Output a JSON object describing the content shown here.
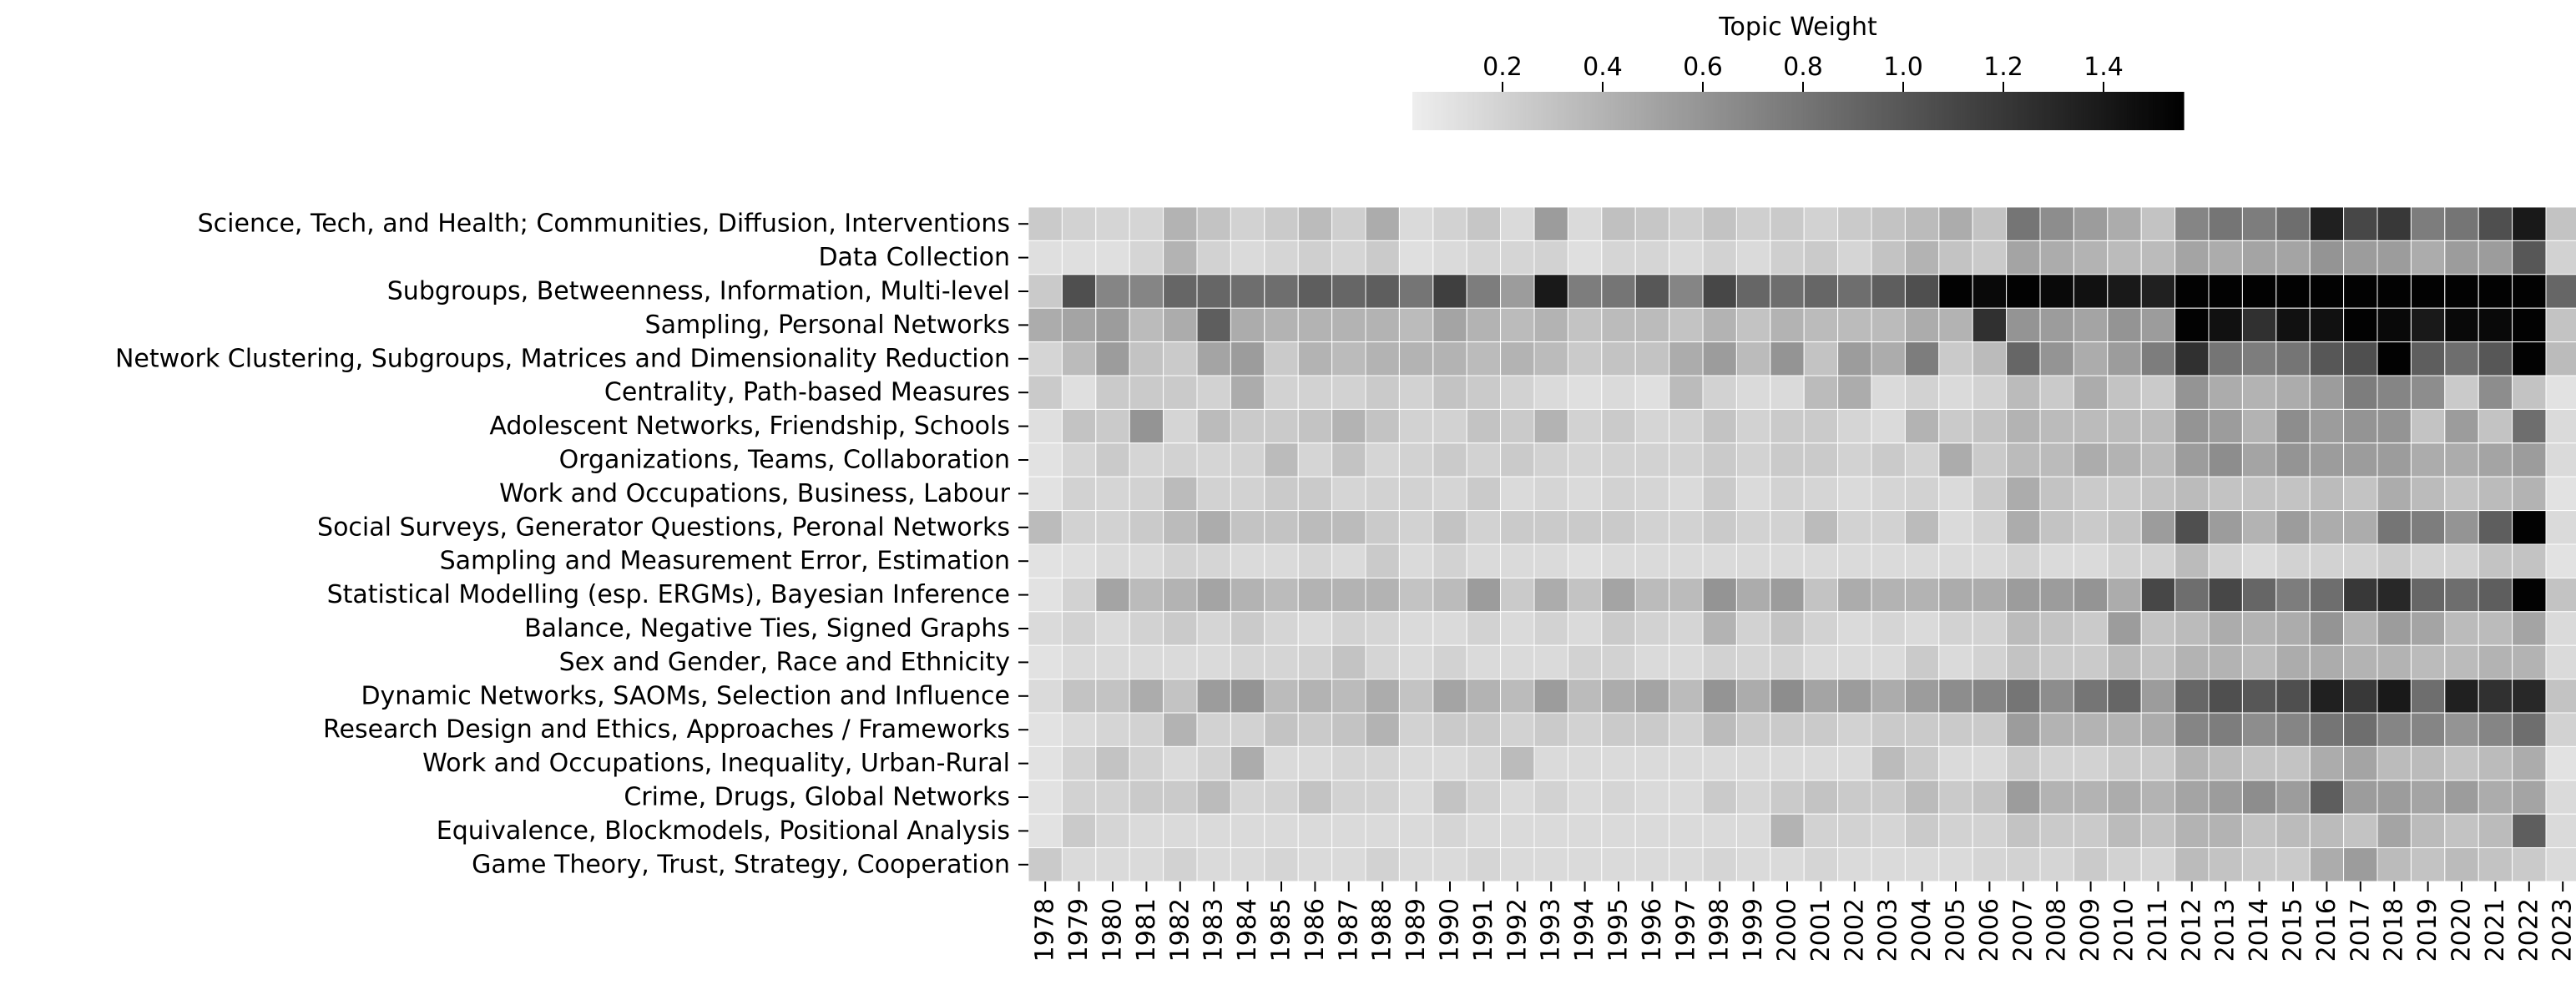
{
  "chart_data": {
    "type": "heatmap",
    "title": "",
    "xlabel": "",
    "ylabel": "",
    "colorbar": {
      "label": "Topic Weight",
      "ticks": [
        0.2,
        0.4,
        0.6,
        0.8,
        1.0,
        1.2,
        1.4
      ],
      "tick_labels": [
        "0.2",
        "0.4",
        "0.6",
        "0.8",
        "1.0",
        "1.2",
        "1.4"
      ],
      "range": [
        0.02,
        1.56
      ],
      "placement": "top-center",
      "colormap": "greys"
    },
    "x": [
      "1978",
      "1979",
      "1980",
      "1981",
      "1982",
      "1983",
      "1984",
      "1985",
      "1986",
      "1987",
      "1988",
      "1989",
      "1990",
      "1991",
      "1992",
      "1993",
      "1994",
      "1995",
      "1996",
      "1997",
      "1998",
      "1999",
      "2000",
      "2001",
      "2002",
      "2003",
      "2004",
      "2005",
      "2006",
      "2007",
      "2008",
      "2009",
      "2010",
      "2011",
      "2012",
      "2013",
      "2014",
      "2015",
      "2016",
      "2017",
      "2018",
      "2019",
      "2020",
      "2021",
      "2022",
      "2023"
    ],
    "y": [
      "Science, Tech, and Health; Communities, Diffusion, Interventions",
      "Data Collection",
      "Subgroups, Betweenness, Information, Multi-level",
      "Sampling, Personal Networks",
      "Network Clustering, Subgroups, Matrices and Dimensionality Reduction",
      "Centrality, Path-based Measures",
      "Adolescent Networks, Friendship, Schools",
      "Organizations, Teams, Collaboration",
      "Work and Occupations, Business, Labour",
      "Social Surveys, Generator Questions, Peronal Networks",
      "Sampling and Measurement Error, Estimation",
      "Statistical Modelling (esp. ERGMs), Bayesian Inference",
      "Balance, Negative Ties, Signed Graphs",
      "Sex and Gender, Race and Ethnicity",
      "Dynamic Networks, SAOMs, Selection and Influence",
      "Research Design and Ethics, Approaches / Frameworks",
      "Work and Occupations, Inequality, Urban-Rural",
      "Crime, Drugs, Global Networks",
      "Equivalence, Blockmodels, Positional Analysis",
      "Game Theory, Trust, Strategy, Cooperation"
    ],
    "values": [
      [
        0.25,
        0.2,
        0.18,
        0.18,
        0.4,
        0.3,
        0.2,
        0.25,
        0.35,
        0.22,
        0.45,
        0.15,
        0.2,
        0.28,
        0.15,
        0.55,
        0.15,
        0.32,
        0.28,
        0.22,
        0.3,
        0.22,
        0.25,
        0.2,
        0.25,
        0.3,
        0.35,
        0.45,
        0.3,
        0.8,
        0.65,
        0.55,
        0.45,
        0.3,
        0.7,
        0.8,
        0.75,
        0.85,
        1.35,
        1.1,
        1.2,
        0.75,
        0.8,
        1.05,
        1.4,
        0.3
      ],
      [
        0.12,
        0.12,
        0.12,
        0.18,
        0.4,
        0.2,
        0.15,
        0.18,
        0.22,
        0.18,
        0.25,
        0.12,
        0.15,
        0.18,
        0.18,
        0.2,
        0.12,
        0.18,
        0.18,
        0.15,
        0.2,
        0.15,
        0.22,
        0.25,
        0.18,
        0.3,
        0.4,
        0.3,
        0.25,
        0.5,
        0.45,
        0.4,
        0.35,
        0.35,
        0.5,
        0.45,
        0.5,
        0.5,
        0.6,
        0.55,
        0.55,
        0.45,
        0.55,
        0.55,
        1.0,
        0.2
      ],
      [
        0.25,
        1.05,
        0.7,
        0.7,
        0.9,
        0.9,
        0.85,
        0.85,
        0.95,
        0.9,
        0.95,
        0.8,
        1.15,
        0.75,
        0.55,
        1.4,
        0.75,
        0.8,
        1.0,
        0.7,
        1.1,
        0.9,
        0.85,
        0.9,
        0.85,
        0.95,
        1.05,
        1.55,
        1.5,
        1.55,
        1.5,
        1.45,
        1.4,
        1.35,
        1.55,
        1.55,
        1.55,
        1.55,
        1.55,
        1.55,
        1.55,
        1.55,
        1.55,
        1.55,
        1.55,
        0.9
      ],
      [
        0.45,
        0.5,
        0.55,
        0.35,
        0.45,
        0.95,
        0.45,
        0.4,
        0.4,
        0.4,
        0.4,
        0.35,
        0.5,
        0.4,
        0.35,
        0.4,
        0.3,
        0.35,
        0.35,
        0.3,
        0.4,
        0.3,
        0.4,
        0.35,
        0.35,
        0.35,
        0.45,
        0.4,
        1.25,
        0.6,
        0.55,
        0.5,
        0.6,
        0.55,
        1.55,
        1.45,
        1.25,
        1.45,
        1.45,
        1.55,
        1.5,
        1.4,
        1.5,
        1.5,
        1.55,
        0.3
      ],
      [
        0.18,
        0.35,
        0.55,
        0.3,
        0.25,
        0.5,
        0.55,
        0.25,
        0.4,
        0.35,
        0.4,
        0.4,
        0.4,
        0.35,
        0.4,
        0.35,
        0.25,
        0.3,
        0.3,
        0.45,
        0.55,
        0.35,
        0.6,
        0.3,
        0.55,
        0.45,
        0.75,
        0.25,
        0.35,
        0.9,
        0.6,
        0.45,
        0.55,
        0.75,
        1.25,
        0.8,
        0.75,
        0.8,
        1.0,
        1.05,
        1.55,
        0.95,
        0.85,
        1.0,
        1.55,
        0.35
      ],
      [
        0.25,
        0.12,
        0.25,
        0.25,
        0.25,
        0.2,
        0.45,
        0.2,
        0.2,
        0.2,
        0.25,
        0.2,
        0.3,
        0.25,
        0.2,
        0.15,
        0.12,
        0.15,
        0.12,
        0.35,
        0.2,
        0.15,
        0.15,
        0.35,
        0.45,
        0.15,
        0.2,
        0.15,
        0.2,
        0.35,
        0.25,
        0.45,
        0.3,
        0.25,
        0.6,
        0.45,
        0.4,
        0.45,
        0.55,
        0.75,
        0.7,
        0.65,
        0.25,
        0.65,
        0.3,
        0.1
      ],
      [
        0.12,
        0.3,
        0.25,
        0.6,
        0.18,
        0.35,
        0.25,
        0.25,
        0.3,
        0.4,
        0.3,
        0.2,
        0.2,
        0.3,
        0.25,
        0.4,
        0.2,
        0.25,
        0.18,
        0.2,
        0.3,
        0.2,
        0.25,
        0.25,
        0.18,
        0.15,
        0.4,
        0.25,
        0.3,
        0.4,
        0.35,
        0.35,
        0.35,
        0.35,
        0.6,
        0.55,
        0.4,
        0.65,
        0.55,
        0.6,
        0.6,
        0.3,
        0.55,
        0.3,
        0.85,
        0.15
      ],
      [
        0.1,
        0.18,
        0.25,
        0.18,
        0.2,
        0.18,
        0.2,
        0.35,
        0.18,
        0.3,
        0.18,
        0.2,
        0.25,
        0.2,
        0.25,
        0.2,
        0.18,
        0.2,
        0.2,
        0.2,
        0.25,
        0.2,
        0.25,
        0.25,
        0.2,
        0.25,
        0.2,
        0.45,
        0.25,
        0.35,
        0.35,
        0.45,
        0.4,
        0.35,
        0.55,
        0.65,
        0.5,
        0.6,
        0.55,
        0.55,
        0.55,
        0.45,
        0.45,
        0.5,
        0.55,
        0.15
      ],
      [
        0.1,
        0.2,
        0.18,
        0.2,
        0.35,
        0.2,
        0.2,
        0.25,
        0.25,
        0.18,
        0.2,
        0.2,
        0.18,
        0.25,
        0.15,
        0.18,
        0.15,
        0.2,
        0.18,
        0.15,
        0.25,
        0.15,
        0.2,
        0.18,
        0.15,
        0.18,
        0.2,
        0.15,
        0.25,
        0.45,
        0.3,
        0.25,
        0.25,
        0.3,
        0.35,
        0.3,
        0.3,
        0.3,
        0.35,
        0.3,
        0.45,
        0.35,
        0.3,
        0.35,
        0.4,
        0.1
      ],
      [
        0.35,
        0.2,
        0.2,
        0.25,
        0.35,
        0.45,
        0.3,
        0.3,
        0.35,
        0.35,
        0.25,
        0.2,
        0.3,
        0.2,
        0.25,
        0.25,
        0.25,
        0.25,
        0.2,
        0.2,
        0.25,
        0.2,
        0.2,
        0.35,
        0.2,
        0.2,
        0.35,
        0.15,
        0.2,
        0.45,
        0.3,
        0.25,
        0.3,
        0.55,
        1.05,
        0.55,
        0.4,
        0.55,
        0.45,
        0.45,
        0.8,
        0.75,
        0.6,
        0.95,
        1.55,
        0.15
      ],
      [
        0.1,
        0.12,
        0.15,
        0.15,
        0.2,
        0.18,
        0.15,
        0.15,
        0.18,
        0.15,
        0.25,
        0.15,
        0.2,
        0.15,
        0.15,
        0.15,
        0.12,
        0.15,
        0.15,
        0.15,
        0.15,
        0.15,
        0.15,
        0.15,
        0.15,
        0.15,
        0.15,
        0.15,
        0.15,
        0.2,
        0.15,
        0.15,
        0.2,
        0.2,
        0.35,
        0.2,
        0.15,
        0.2,
        0.2,
        0.2,
        0.25,
        0.2,
        0.2,
        0.3,
        0.3,
        0.1
      ],
      [
        0.1,
        0.2,
        0.5,
        0.35,
        0.4,
        0.5,
        0.4,
        0.35,
        0.4,
        0.4,
        0.4,
        0.3,
        0.35,
        0.55,
        0.25,
        0.45,
        0.3,
        0.5,
        0.35,
        0.35,
        0.6,
        0.45,
        0.55,
        0.3,
        0.45,
        0.4,
        0.4,
        0.45,
        0.45,
        0.55,
        0.55,
        0.6,
        0.45,
        1.1,
        0.85,
        1.1,
        0.9,
        0.75,
        0.85,
        1.2,
        1.3,
        0.9,
        0.85,
        0.95,
        1.55,
        0.3
      ],
      [
        0.15,
        0.2,
        0.15,
        0.2,
        0.25,
        0.18,
        0.25,
        0.18,
        0.15,
        0.2,
        0.18,
        0.15,
        0.15,
        0.2,
        0.15,
        0.2,
        0.15,
        0.25,
        0.2,
        0.18,
        0.4,
        0.2,
        0.3,
        0.2,
        0.15,
        0.18,
        0.15,
        0.2,
        0.2,
        0.35,
        0.3,
        0.25,
        0.55,
        0.3,
        0.35,
        0.45,
        0.4,
        0.45,
        0.6,
        0.4,
        0.55,
        0.5,
        0.35,
        0.35,
        0.5,
        0.15
      ],
      [
        0.1,
        0.15,
        0.15,
        0.15,
        0.15,
        0.15,
        0.18,
        0.18,
        0.2,
        0.3,
        0.18,
        0.15,
        0.2,
        0.15,
        0.15,
        0.15,
        0.2,
        0.2,
        0.15,
        0.15,
        0.2,
        0.18,
        0.2,
        0.15,
        0.15,
        0.15,
        0.25,
        0.15,
        0.2,
        0.3,
        0.25,
        0.25,
        0.35,
        0.3,
        0.4,
        0.4,
        0.35,
        0.45,
        0.45,
        0.4,
        0.4,
        0.35,
        0.35,
        0.4,
        0.4,
        0.15
      ],
      [
        0.15,
        0.3,
        0.3,
        0.45,
        0.3,
        0.55,
        0.6,
        0.35,
        0.4,
        0.35,
        0.45,
        0.3,
        0.5,
        0.4,
        0.35,
        0.55,
        0.35,
        0.45,
        0.5,
        0.35,
        0.6,
        0.45,
        0.65,
        0.5,
        0.55,
        0.45,
        0.55,
        0.65,
        0.7,
        0.8,
        0.65,
        0.8,
        0.9,
        0.55,
        0.9,
        1.05,
        1.0,
        1.05,
        1.35,
        1.2,
        1.4,
        0.85,
        1.35,
        1.25,
        1.3,
        0.3
      ],
      [
        0.1,
        0.15,
        0.18,
        0.2,
        0.4,
        0.2,
        0.2,
        0.3,
        0.25,
        0.3,
        0.4,
        0.2,
        0.25,
        0.25,
        0.2,
        0.25,
        0.2,
        0.25,
        0.25,
        0.2,
        0.35,
        0.25,
        0.25,
        0.25,
        0.2,
        0.25,
        0.25,
        0.25,
        0.25,
        0.55,
        0.4,
        0.4,
        0.4,
        0.45,
        0.7,
        0.75,
        0.65,
        0.7,
        0.8,
        0.85,
        0.7,
        0.7,
        0.6,
        0.7,
        0.85,
        0.2
      ],
      [
        0.1,
        0.2,
        0.3,
        0.2,
        0.15,
        0.2,
        0.45,
        0.15,
        0.15,
        0.18,
        0.18,
        0.15,
        0.15,
        0.18,
        0.35,
        0.15,
        0.15,
        0.15,
        0.15,
        0.15,
        0.15,
        0.15,
        0.15,
        0.15,
        0.15,
        0.35,
        0.25,
        0.15,
        0.15,
        0.25,
        0.2,
        0.2,
        0.25,
        0.25,
        0.4,
        0.35,
        0.3,
        0.3,
        0.45,
        0.5,
        0.35,
        0.35,
        0.3,
        0.35,
        0.45,
        0.1
      ],
      [
        0.1,
        0.2,
        0.2,
        0.25,
        0.25,
        0.35,
        0.18,
        0.2,
        0.3,
        0.2,
        0.2,
        0.15,
        0.3,
        0.2,
        0.15,
        0.2,
        0.15,
        0.18,
        0.15,
        0.15,
        0.25,
        0.18,
        0.25,
        0.3,
        0.25,
        0.25,
        0.35,
        0.25,
        0.3,
        0.55,
        0.4,
        0.4,
        0.45,
        0.4,
        0.5,
        0.55,
        0.65,
        0.55,
        0.95,
        0.55,
        0.55,
        0.5,
        0.55,
        0.45,
        0.5,
        0.15
      ],
      [
        0.1,
        0.25,
        0.18,
        0.15,
        0.15,
        0.15,
        0.15,
        0.15,
        0.15,
        0.15,
        0.15,
        0.15,
        0.18,
        0.15,
        0.15,
        0.15,
        0.15,
        0.15,
        0.15,
        0.15,
        0.15,
        0.15,
        0.4,
        0.2,
        0.2,
        0.18,
        0.25,
        0.2,
        0.2,
        0.3,
        0.25,
        0.25,
        0.35,
        0.3,
        0.4,
        0.4,
        0.3,
        0.35,
        0.35,
        0.3,
        0.5,
        0.35,
        0.3,
        0.35,
        0.95,
        0.15
      ],
      [
        0.25,
        0.15,
        0.15,
        0.15,
        0.2,
        0.15,
        0.15,
        0.18,
        0.15,
        0.15,
        0.2,
        0.15,
        0.15,
        0.18,
        0.15,
        0.15,
        0.15,
        0.15,
        0.15,
        0.15,
        0.18,
        0.15,
        0.15,
        0.18,
        0.15,
        0.15,
        0.15,
        0.15,
        0.18,
        0.2,
        0.18,
        0.25,
        0.2,
        0.18,
        0.35,
        0.3,
        0.25,
        0.25,
        0.45,
        0.55,
        0.35,
        0.3,
        0.35,
        0.3,
        0.25,
        0.15
      ]
    ]
  }
}
